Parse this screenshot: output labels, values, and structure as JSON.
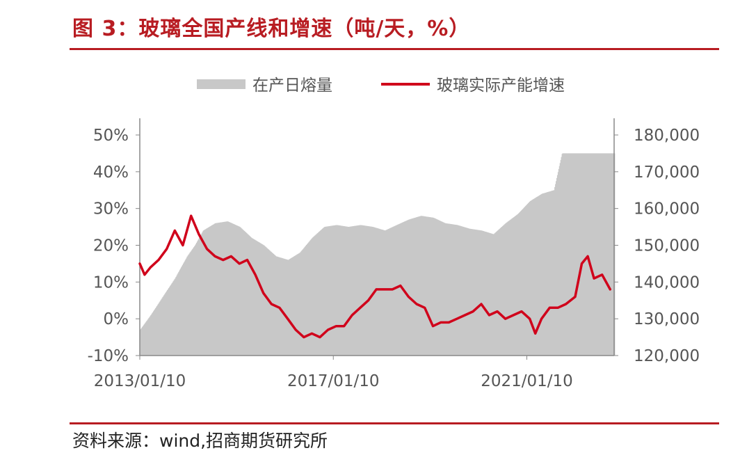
{
  "figure": {
    "title": "图 3：玻璃全国产线和增速（吨/天，%）",
    "source": "资料来源：wind,招商期货研究所"
  },
  "colors": {
    "title": "#b81c22",
    "rules": "#b81c22",
    "bars": "#c8c8c8",
    "line": "#d0021b",
    "axis": "#555555"
  },
  "chart_data": {
    "type": "bar",
    "x_start": "2013/01/10",
    "x_end": "2022/01/10",
    "xticks": [
      "2013/01/10",
      "2017/01/10",
      "2021/01/10"
    ],
    "grid": false,
    "legend": {
      "position": "top"
    },
    "left_axis": {
      "ticks": [
        "50%",
        "40%",
        "30%",
        "20%",
        "10%",
        "0%",
        "-10%"
      ],
      "range": [
        -10,
        50
      ]
    },
    "right_axis": {
      "ticks": [
        "180,000",
        "170,000",
        "160,000",
        "150,000",
        "140,000",
        "130,000",
        "120,000"
      ],
      "range": [
        120000,
        180000
      ]
    },
    "series": [
      {
        "name": "在产日熔量",
        "type": "bar",
        "axis": "right",
        "points": [
          [
            "2013-01-10",
            127000
          ],
          [
            "2013-04-01",
            131000
          ],
          [
            "2013-07-01",
            136000
          ],
          [
            "2013-10-01",
            141000
          ],
          [
            "2014-01-01",
            147000
          ],
          [
            "2014-03-01",
            150000
          ],
          [
            "2014-05-01",
            154000
          ],
          [
            "2014-08-01",
            156000
          ],
          [
            "2014-11-01",
            156500
          ],
          [
            "2015-02-01",
            155000
          ],
          [
            "2015-05-01",
            152000
          ],
          [
            "2015-08-01",
            150000
          ],
          [
            "2015-11-01",
            147000
          ],
          [
            "2016-02-01",
            146000
          ],
          [
            "2016-05-01",
            148000
          ],
          [
            "2016-08-01",
            152000
          ],
          [
            "2016-11-01",
            155000
          ],
          [
            "2017-02-01",
            155500
          ],
          [
            "2017-05-01",
            155000
          ],
          [
            "2017-08-01",
            155500
          ],
          [
            "2017-11-01",
            155000
          ],
          [
            "2018-02-01",
            154000
          ],
          [
            "2018-05-01",
            155500
          ],
          [
            "2018-08-01",
            157000
          ],
          [
            "2018-11-01",
            158000
          ],
          [
            "2019-02-01",
            157500
          ],
          [
            "2019-05-01",
            156000
          ],
          [
            "2019-08-01",
            155500
          ],
          [
            "2019-11-01",
            154500
          ],
          [
            "2020-02-01",
            154000
          ],
          [
            "2020-05-01",
            153000
          ],
          [
            "2020-08-01",
            156000
          ],
          [
            "2020-11-01",
            158500
          ],
          [
            "2021-02-01",
            162000
          ],
          [
            "2021-05-01",
            164000
          ],
          [
            "2021-08-01",
            165000
          ],
          [
            "2021-10-01",
            175000
          ],
          [
            "2022-01-10",
            175000
          ]
        ]
      },
      {
        "name": "玻璃实际产能增速",
        "type": "line",
        "axis": "left",
        "points": [
          [
            "2013-01-10",
            15
          ],
          [
            "2013-02-15",
            12
          ],
          [
            "2013-04-01",
            14
          ],
          [
            "2013-06-01",
            16
          ],
          [
            "2013-08-01",
            19
          ],
          [
            "2013-10-01",
            24
          ],
          [
            "2013-12-01",
            20
          ],
          [
            "2014-02-01",
            28
          ],
          [
            "2014-04-01",
            23
          ],
          [
            "2014-06-01",
            19
          ],
          [
            "2014-08-01",
            17
          ],
          [
            "2014-10-01",
            16
          ],
          [
            "2014-12-01",
            17
          ],
          [
            "2015-02-01",
            15
          ],
          [
            "2015-04-01",
            16
          ],
          [
            "2015-06-01",
            12
          ],
          [
            "2015-08-01",
            7
          ],
          [
            "2015-10-01",
            4
          ],
          [
            "2015-12-01",
            3
          ],
          [
            "2016-02-01",
            0
          ],
          [
            "2016-04-01",
            -3
          ],
          [
            "2016-06-01",
            -5
          ],
          [
            "2016-08-01",
            -4
          ],
          [
            "2016-10-01",
            -5
          ],
          [
            "2016-12-01",
            -3
          ],
          [
            "2017-02-01",
            -2
          ],
          [
            "2017-04-01",
            -2
          ],
          [
            "2017-06-01",
            1
          ],
          [
            "2017-08-01",
            3
          ],
          [
            "2017-10-01",
            5
          ],
          [
            "2017-12-01",
            8
          ],
          [
            "2018-02-01",
            8
          ],
          [
            "2018-04-01",
            8
          ],
          [
            "2018-06-01",
            9
          ],
          [
            "2018-08-01",
            6
          ],
          [
            "2018-10-01",
            4
          ],
          [
            "2018-12-01",
            3
          ],
          [
            "2019-02-01",
            -2
          ],
          [
            "2019-04-01",
            -1
          ],
          [
            "2019-06-01",
            -1
          ],
          [
            "2019-08-01",
            0
          ],
          [
            "2019-10-01",
            1
          ],
          [
            "2019-12-01",
            2
          ],
          [
            "2020-02-01",
            4
          ],
          [
            "2020-04-01",
            1
          ],
          [
            "2020-06-01",
            2
          ],
          [
            "2020-08-01",
            0
          ],
          [
            "2020-10-01",
            1
          ],
          [
            "2020-12-01",
            2
          ],
          [
            "2021-02-01",
            0
          ],
          [
            "2021-03-15",
            -4
          ],
          [
            "2021-05-01",
            0
          ],
          [
            "2021-07-01",
            3
          ],
          [
            "2021-09-01",
            3
          ],
          [
            "2021-11-01",
            4
          ],
          [
            "2022-01-10",
            6
          ],
          [
            "2022-03-01",
            15
          ],
          [
            "2022-04-15",
            17
          ],
          [
            "2022-06-01",
            11
          ],
          [
            "2022-08-01",
            12
          ],
          [
            "2022-10-01",
            8
          ]
        ]
      }
    ]
  }
}
